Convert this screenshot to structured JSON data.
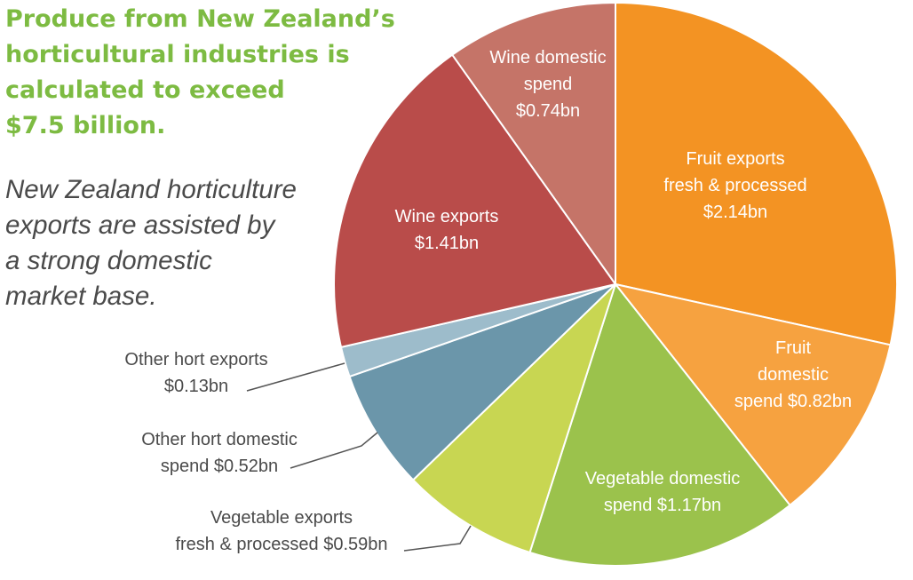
{
  "headline": "Produce from New Zealand’s\nhorticultural industries is\ncalculated to exceed\n$7.5 billion.",
  "subheading": "New Zealand horticulture\nexports are assisted by\na strong domestic\nmarket base.",
  "chart_data": {
    "type": "pie",
    "unit": "bn",
    "slices": [
      {
        "label": [
          "Fruit exports",
          "fresh & processed",
          "$2.14bn"
        ],
        "value": 2.14,
        "color": "#f39323",
        "label_placement": "inside"
      },
      {
        "label": [
          "Fruit",
          "domestic",
          "spend $0.82bn"
        ],
        "value": 0.82,
        "color": "#f6a240",
        "label_placement": "inside"
      },
      {
        "label": [
          "Vegetable domestic",
          "spend $1.17bn"
        ],
        "value": 1.17,
        "color": "#9bc24c",
        "label_placement": "inside"
      },
      {
        "label": [
          "Vegetable exports",
          "fresh & processed $0.59bn"
        ],
        "value": 0.59,
        "color": "#c8d652",
        "label_placement": "outside"
      },
      {
        "label": [
          "Other hort domestic",
          "spend $0.52bn"
        ],
        "value": 0.52,
        "color": "#6b96aa",
        "label_placement": "outside"
      },
      {
        "label": [
          "Other hort exports",
          "$0.13bn"
        ],
        "value": 0.13,
        "color": "#9dbccb",
        "label_placement": "outside"
      },
      {
        "label": [
          "Wine exports",
          "$1.41bn"
        ],
        "value": 1.41,
        "color": "#b94c4a",
        "label_placement": "inside"
      },
      {
        "label": [
          "Wine domestic",
          "spend",
          "$0.74bn"
        ],
        "value": 0.74,
        "color": "#c57468",
        "label_placement": "inside"
      }
    ]
  }
}
